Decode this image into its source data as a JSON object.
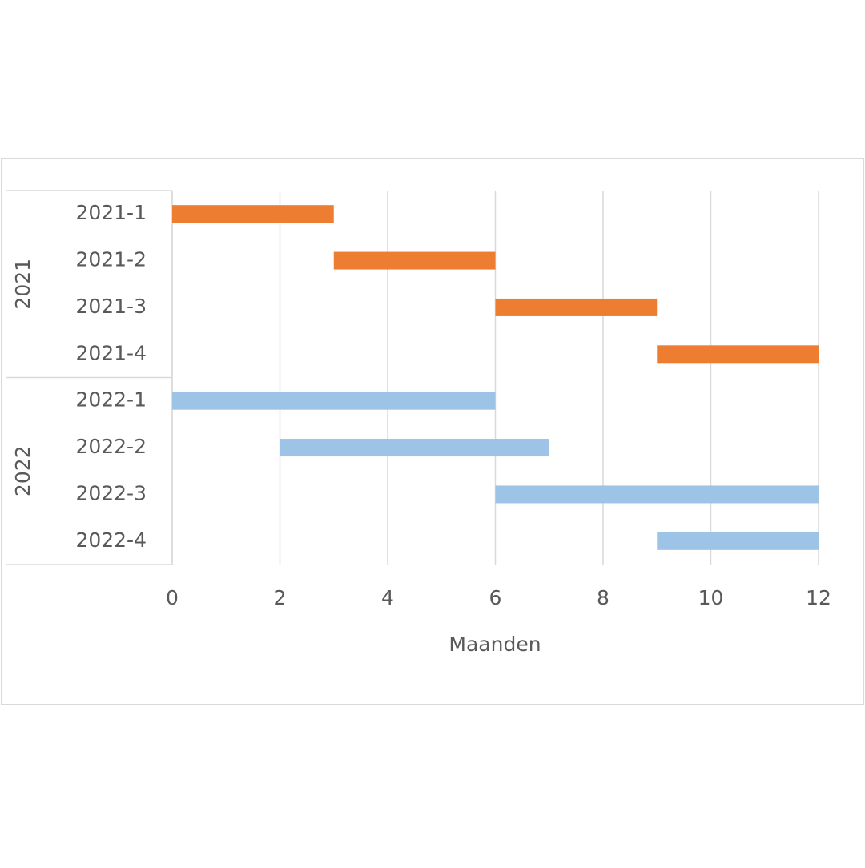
{
  "chart_data": {
    "type": "floating-bar",
    "orientation": "horizontal",
    "groups": [
      {
        "label": "2021",
        "color": "#ed7d31",
        "categories": [
          "2021-1",
          "2021-2",
          "2021-3",
          "2021-4"
        ],
        "start": [
          0,
          3,
          6,
          9
        ],
        "duration": [
          3,
          3,
          3,
          3
        ]
      },
      {
        "label": "2022",
        "color": "#9dc3e6",
        "categories": [
          "2022-1",
          "2022-2",
          "2022-3",
          "2022-4"
        ],
        "start": [
          0,
          2,
          6,
          9
        ],
        "duration": [
          6,
          5,
          6,
          3
        ]
      }
    ],
    "xlabel": "Maanden",
    "xlim": [
      0,
      12
    ],
    "xticks": [
      0,
      2,
      4,
      6,
      8,
      10,
      12
    ],
    "grid": true
  }
}
